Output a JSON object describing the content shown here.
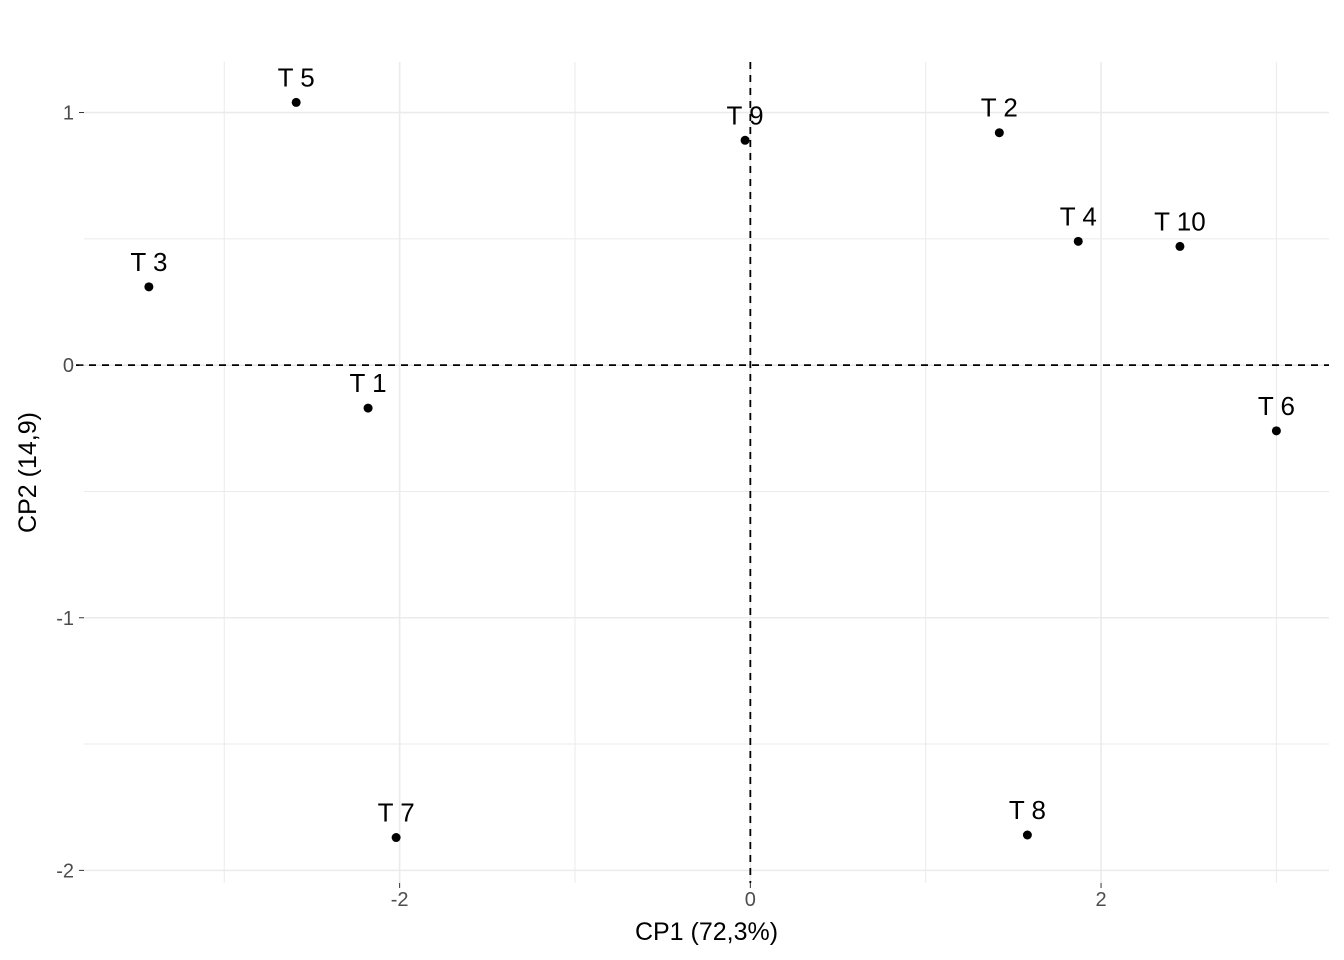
{
  "chart_data": {
    "type": "scatter",
    "title": "",
    "xlabel": "CP1 (72,3%)",
    "ylabel": "CP2 (14,9)",
    "xlim": [
      -3.8,
      3.3
    ],
    "ylim": [
      -2.05,
      1.2
    ],
    "x_ticks": [
      -2,
      0,
      2
    ],
    "x_tick_labels": [
      "-2",
      "0",
      "2"
    ],
    "y_ticks": [
      -2,
      -1,
      0,
      1
    ],
    "y_tick_labels": [
      "-2",
      "-1",
      "0",
      "1"
    ],
    "grid": true,
    "reference_lines": {
      "x": 0,
      "y": 0,
      "style": "dashed"
    },
    "points": [
      {
        "label": "T 1",
        "x": -2.18,
        "y": -0.17
      },
      {
        "label": "T 2",
        "x": 1.42,
        "y": 0.92
      },
      {
        "label": "T 3",
        "x": -3.43,
        "y": 0.31
      },
      {
        "label": "T 4",
        "x": 1.87,
        "y": 0.49
      },
      {
        "label": "T 5",
        "x": -2.59,
        "y": 1.04
      },
      {
        "label": "T 6",
        "x": 3.0,
        "y": -0.26
      },
      {
        "label": "T 7",
        "x": -2.02,
        "y": -1.87
      },
      {
        "label": "T 8",
        "x": 1.58,
        "y": -1.86
      },
      {
        "label": "T 9",
        "x": -0.03,
        "y": 0.89
      },
      {
        "label": "T 10",
        "x": 2.45,
        "y": 0.47
      }
    ],
    "colors": {
      "grid": "#ebebeb",
      "point": "#000000",
      "reference_line": "#000000",
      "tick_text": "#4d4d4d"
    }
  }
}
